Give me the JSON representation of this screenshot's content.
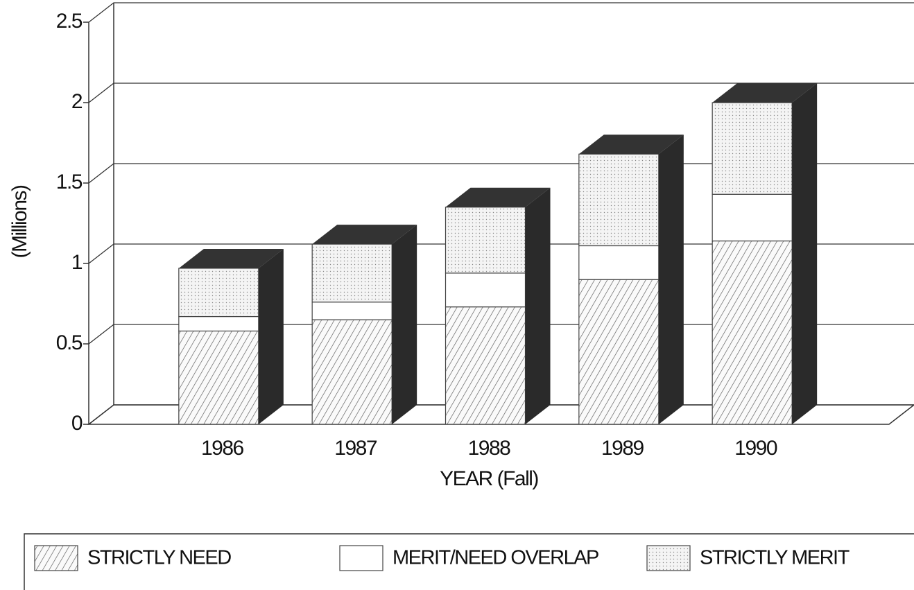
{
  "chart_data": {
    "type": "bar",
    "x_label": "YEAR (Fall)",
    "y_label": "(Millions)",
    "categories": [
      "1986",
      "1987",
      "1988",
      "1989",
      "1990"
    ],
    "series": [
      {
        "name": "STRICTLY NEED",
        "values": [
          0.58,
          0.65,
          0.73,
          0.9,
          1.14
        ]
      },
      {
        "name": "MERIT/NEED OVERLAP",
        "values": [
          0.09,
          0.11,
          0.21,
          0.21,
          0.29
        ]
      },
      {
        "name": "STRICTLY MERIT",
        "values": [
          0.3,
          0.36,
          0.41,
          0.57,
          0.57
        ]
      }
    ],
    "stacked": true,
    "ylim": [
      0,
      2.5
    ],
    "yticks": [
      0,
      0.5,
      1,
      1.5,
      2,
      2.5
    ],
    "grid": true,
    "legend": "bottom"
  }
}
